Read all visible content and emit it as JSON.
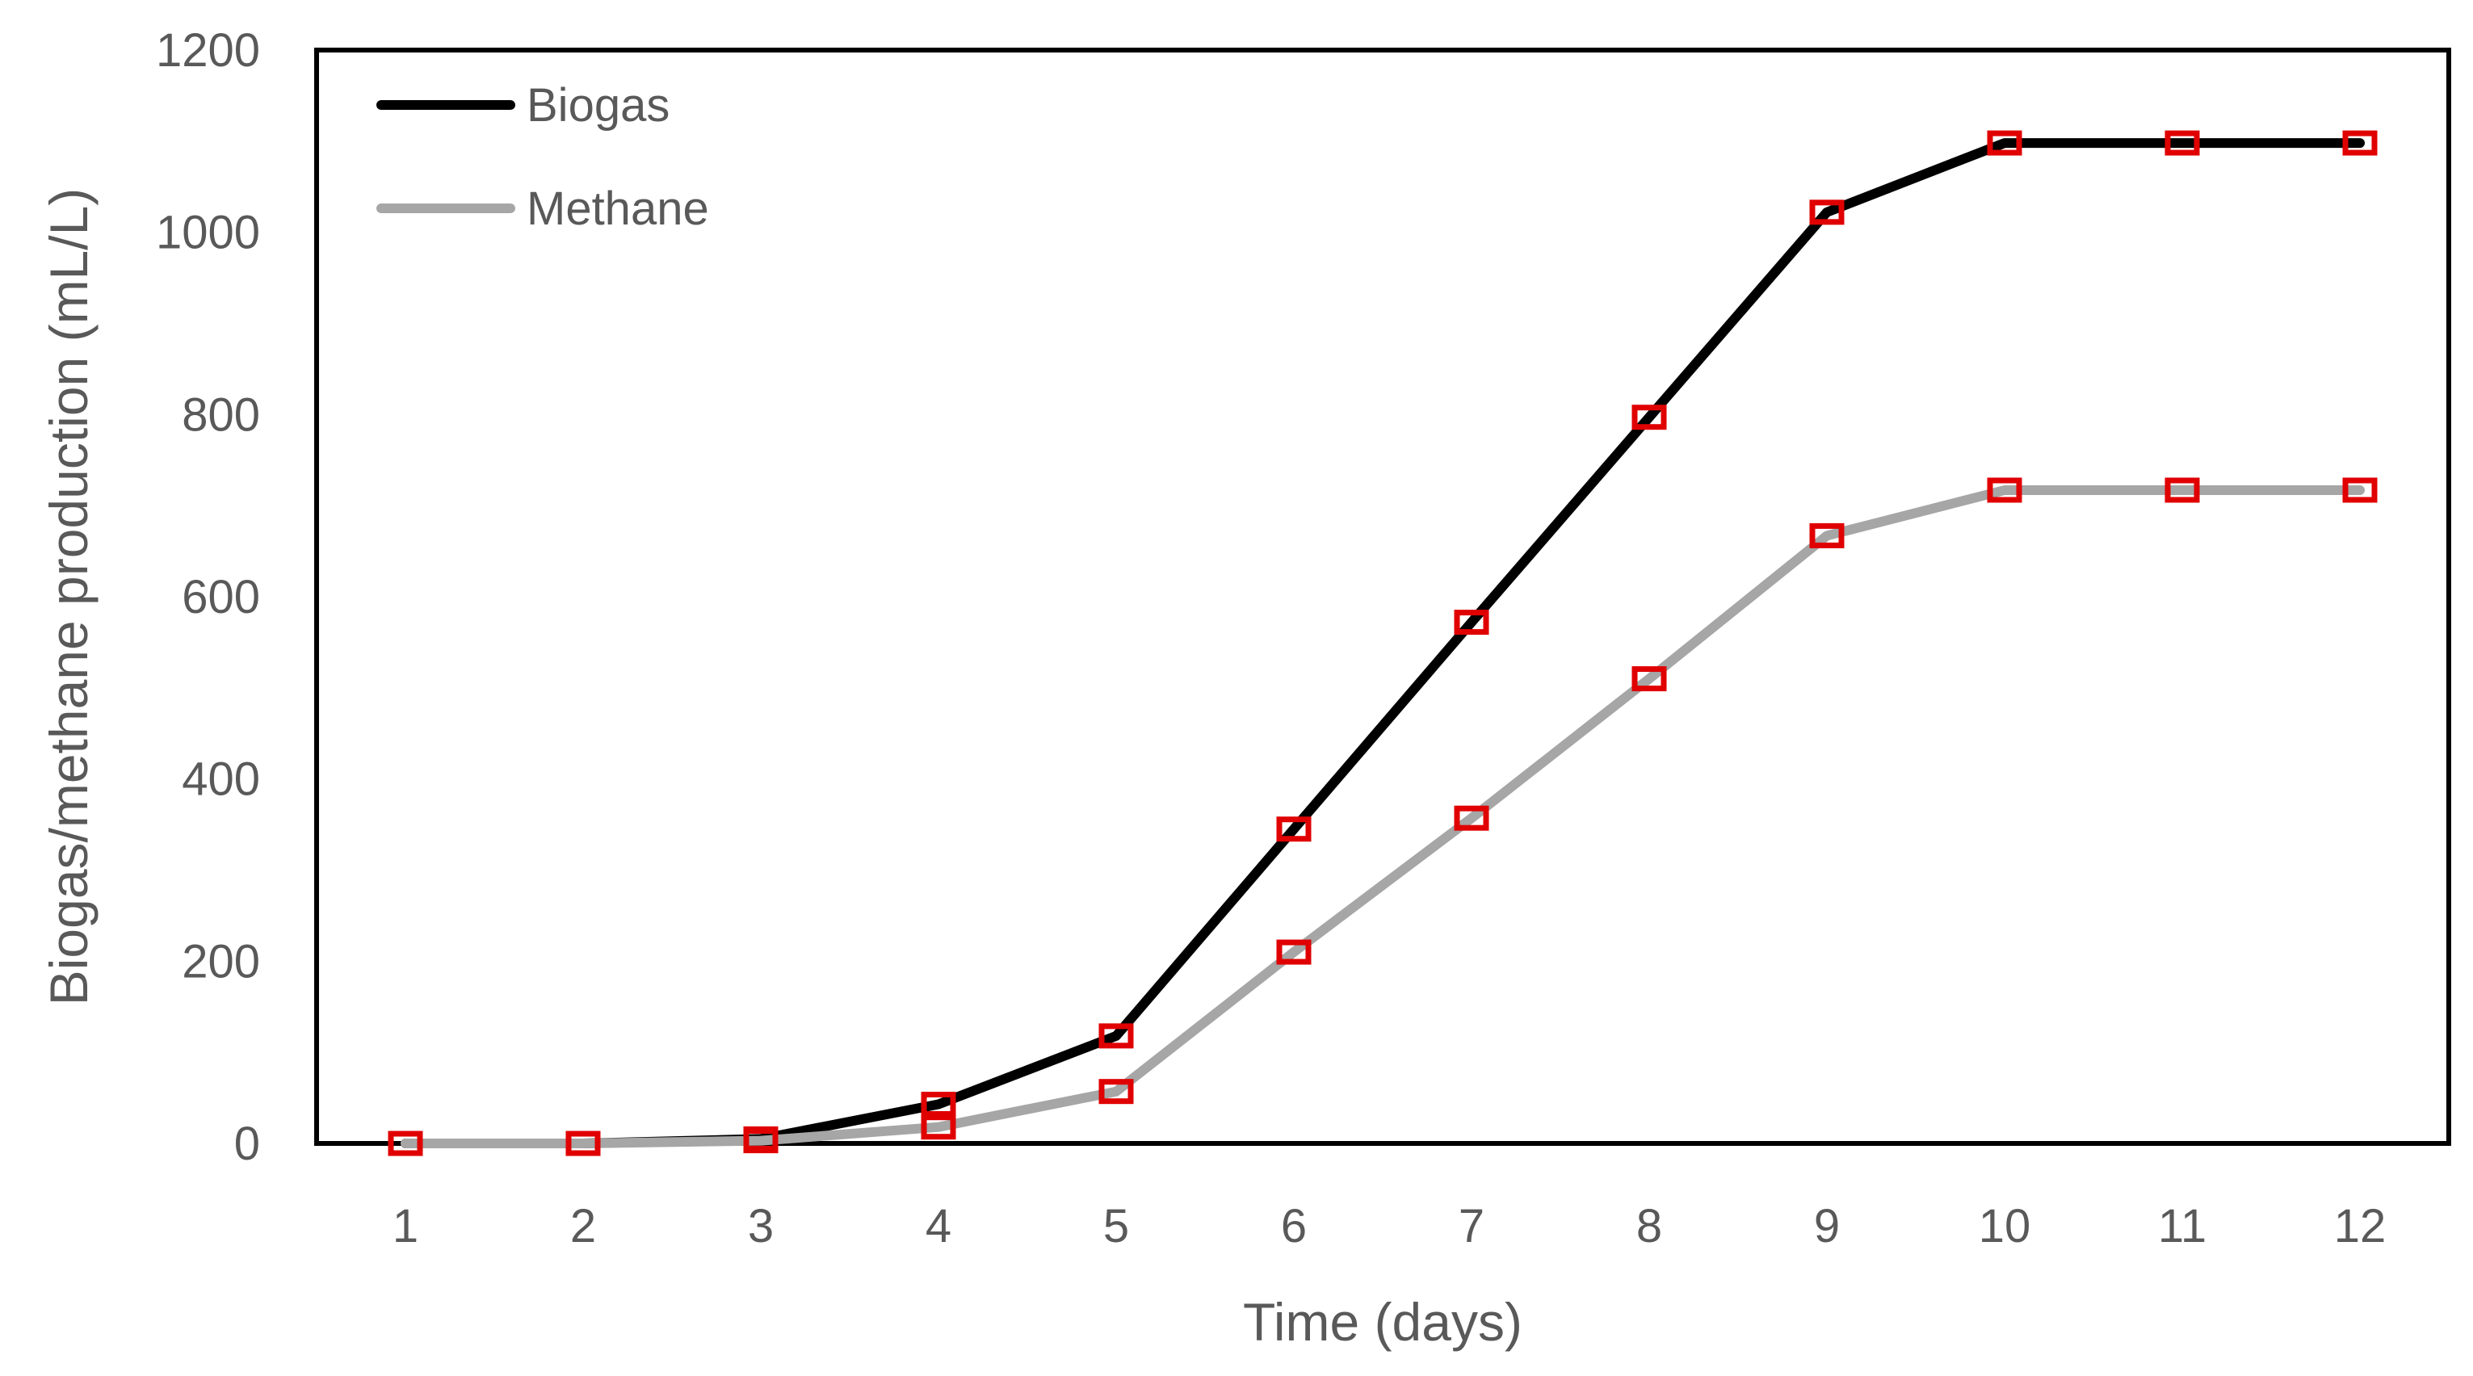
{
  "chart_data": {
    "type": "line",
    "title": "",
    "xlabel": "Time (days)",
    "ylabel": "Biogas/methane production (mL/L)",
    "x": [
      1,
      2,
      3,
      4,
      5,
      6,
      7,
      8,
      9,
      10,
      11,
      12
    ],
    "xlim": [
      0.5,
      12.5
    ],
    "ylim": [
      0,
      1200
    ],
    "yticks": [
      0,
      200,
      400,
      600,
      800,
      1000,
      1200
    ],
    "grid": false,
    "legend_position": "top-left",
    "marker_color": "#e00000",
    "series": [
      {
        "name": "Biogas",
        "color": "#000000",
        "values": [
          0,
          0,
          5,
          43,
          118,
          345,
          572,
          797,
          1022,
          1098,
          1098,
          1098
        ]
      },
      {
        "name": "Methane",
        "color": "#a6a6a6",
        "values": [
          0,
          0,
          3,
          18,
          57,
          210,
          357,
          510,
          667,
          717,
          717,
          717
        ]
      }
    ]
  }
}
